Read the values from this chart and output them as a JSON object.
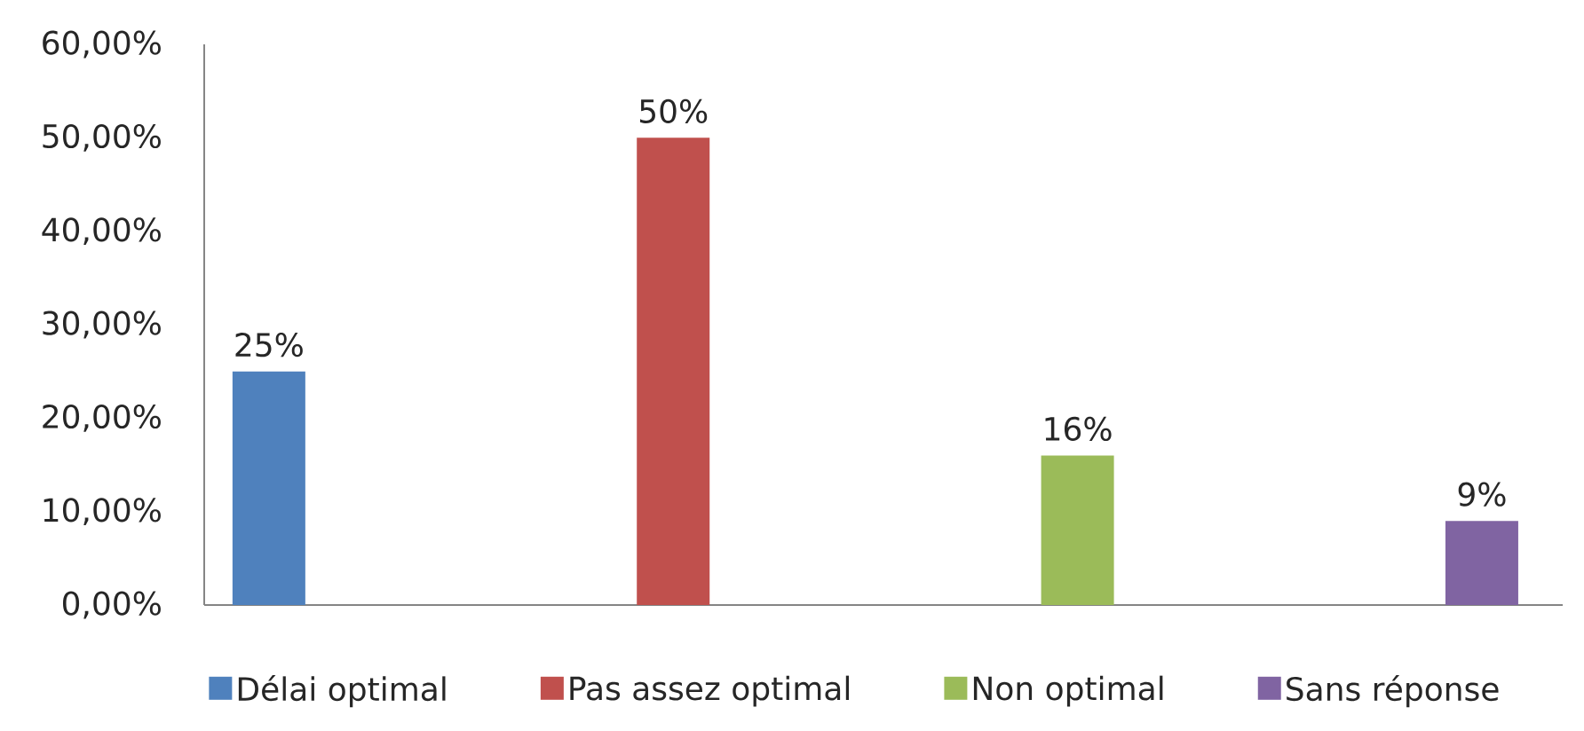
{
  "chart_data": {
    "type": "bar",
    "categories": [
      null,
      null,
      null,
      null
    ],
    "ylim": [
      0,
      60
    ],
    "yticks": [
      {
        "value": 0,
        "label": "0,00%"
      },
      {
        "value": 10,
        "label": "10,00%"
      },
      {
        "value": 20,
        "label": "20,00%"
      },
      {
        "value": 30,
        "label": "30,00%"
      },
      {
        "value": 40,
        "label": "40,00%"
      },
      {
        "value": 50,
        "label": "50,00%"
      },
      {
        "value": 60,
        "label": "60,00%"
      }
    ],
    "tick_labels": "y",
    "legend": "bottom",
    "series": [
      {
        "name": "Délai optimal",
        "color": "#4f81bd",
        "values": [
          25,
          null,
          null,
          null
        ],
        "value_labels": [
          "25%",
          null,
          null,
          null
        ]
      },
      {
        "name": "Pas assez optimal",
        "color": "#c0504d",
        "values": [
          null,
          50,
          null,
          null
        ],
        "value_labels": [
          null,
          "50%",
          null,
          null
        ]
      },
      {
        "name": "Non optimal",
        "color": "#9bbb59",
        "values": [
          null,
          null,
          16,
          null
        ],
        "value_labels": [
          null,
          null,
          "16%",
          null
        ]
      },
      {
        "name": "Sans réponse",
        "color": "#8064a2",
        "values": [
          null,
          null,
          null,
          9
        ],
        "value_labels": [
          null,
          null,
          null,
          "9%"
        ]
      }
    ]
  }
}
